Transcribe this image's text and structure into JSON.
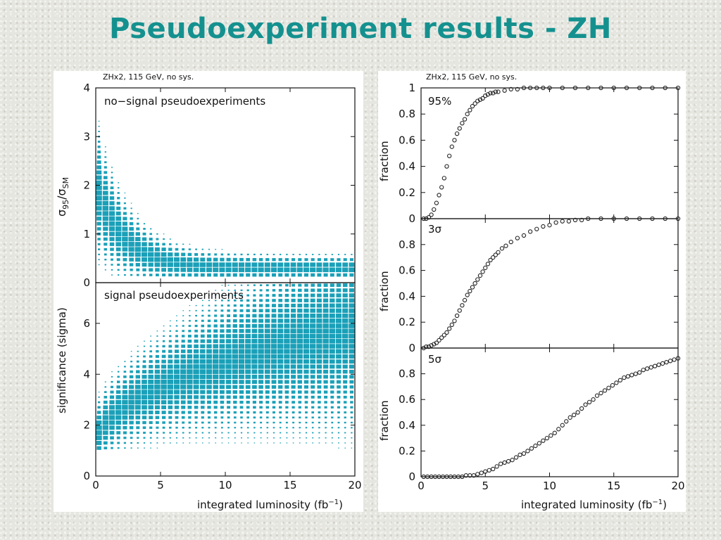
{
  "title": "Pseudoexperiment results - ZH",
  "colors": {
    "title": "#14918f",
    "scatter": "#1aa0b8",
    "points": "#222222"
  },
  "chart_data": [
    {
      "type": "heatmap",
      "panel": "left-top",
      "title": "ZHx2, 115 GeV, no sys.",
      "annotation": "no−signal pseudoexperiments",
      "xlabel": "integrated luminosity",
      "xlabel_unit": "(fb",
      "xlabel_sup": "−1",
      "xlabel_close": ")",
      "ylabel_main": "σ",
      "ylabel_sub1": "95",
      "ylabel_mid": "/σ",
      "ylabel_sub2": "SM",
      "xlim": [
        0,
        20
      ],
      "ylim": [
        0,
        4
      ],
      "xticks": [
        "0",
        "5",
        "10",
        "15",
        "20"
      ],
      "yticks": [
        "0",
        "1",
        "2",
        "3",
        "4"
      ],
      "description_model": {
        "mean_start": 2.0,
        "mean_end": 0.3,
        "color": "#1aa0b8"
      }
    },
    {
      "type": "heatmap",
      "panel": "left-bottom",
      "annotation": "signal pseudoexperiments",
      "ylabel": "significance  (sigma)",
      "xlim": [
        0,
        20
      ],
      "ylim": [
        0,
        7.6
      ],
      "yticks": [
        "0",
        "2",
        "4",
        "6"
      ],
      "description_model": {
        "mean_start": 1.2,
        "mean_end": 5.8,
        "color": "#1aa0b8"
      }
    },
    {
      "type": "scatter",
      "panel": "right-top",
      "title": "ZHx2, 115 GeV, no sys.",
      "annotation": "95%",
      "ylabel": "fraction",
      "xlim": [
        0,
        20
      ],
      "ylim": [
        0,
        1
      ],
      "yticks": [
        "0",
        "0.2",
        "0.4",
        "0.6",
        "0.8",
        "1"
      ],
      "x": [
        0.2,
        0.4,
        0.6,
        0.8,
        1.0,
        1.2,
        1.4,
        1.6,
        1.8,
        2.0,
        2.2,
        2.4,
        2.6,
        2.8,
        3.0,
        3.2,
        3.4,
        3.6,
        3.8,
        4.0,
        4.2,
        4.4,
        4.6,
        4.8,
        5.0,
        5.2,
        5.4,
        5.6,
        5.8,
        6.0,
        6.5,
        7.0,
        7.5,
        8.0,
        8.5,
        9.0,
        9.5,
        10,
        11,
        12,
        13,
        14,
        15,
        16,
        17,
        18,
        19,
        20
      ],
      "values": [
        0,
        0,
        0.01,
        0.03,
        0.07,
        0.12,
        0.18,
        0.24,
        0.31,
        0.4,
        0.48,
        0.55,
        0.6,
        0.65,
        0.69,
        0.73,
        0.76,
        0.8,
        0.83,
        0.86,
        0.88,
        0.9,
        0.91,
        0.92,
        0.94,
        0.95,
        0.96,
        0.96,
        0.97,
        0.97,
        0.98,
        0.99,
        0.99,
        1,
        1,
        1,
        1,
        1,
        1,
        1,
        1,
        1,
        1,
        1,
        1,
        1,
        1,
        1
      ]
    },
    {
      "type": "scatter",
      "panel": "right-middle",
      "annotation": "3σ",
      "ylabel": "fraction",
      "xlim": [
        0,
        20
      ],
      "ylim": [
        0,
        1
      ],
      "yticks": [
        "0",
        "0.2",
        "0.4",
        "0.6",
        "0.8"
      ],
      "x": [
        0.2,
        0.4,
        0.6,
        0.8,
        1.0,
        1.2,
        1.4,
        1.6,
        1.8,
        2.0,
        2.2,
        2.4,
        2.6,
        2.8,
        3.0,
        3.2,
        3.4,
        3.6,
        3.8,
        4.0,
        4.2,
        4.4,
        4.6,
        4.8,
        5.0,
        5.2,
        5.4,
        5.6,
        5.8,
        6.0,
        6.3,
        6.6,
        7.0,
        7.5,
        8.0,
        8.5,
        9.0,
        9.5,
        10,
        10.5,
        11,
        11.5,
        12,
        12.5,
        13,
        14,
        15,
        16,
        17,
        18,
        19,
        20
      ],
      "values": [
        0,
        0.01,
        0.01,
        0.02,
        0.03,
        0.04,
        0.06,
        0.08,
        0.1,
        0.12,
        0.15,
        0.18,
        0.21,
        0.25,
        0.29,
        0.33,
        0.37,
        0.41,
        0.44,
        0.47,
        0.5,
        0.53,
        0.56,
        0.59,
        0.62,
        0.65,
        0.68,
        0.7,
        0.72,
        0.74,
        0.77,
        0.79,
        0.82,
        0.85,
        0.87,
        0.9,
        0.92,
        0.94,
        0.95,
        0.97,
        0.98,
        0.98,
        0.99,
        0.99,
        1,
        1,
        1,
        1,
        1,
        1,
        1,
        1
      ]
    },
    {
      "type": "scatter",
      "panel": "right-bottom",
      "annotation": "5σ",
      "ylabel": "fraction",
      "xlabel": "integrated luminosity",
      "xlabel_unit": "(fb",
      "xlabel_sup": "−1",
      "xlabel_close": ")",
      "xlim": [
        0,
        20
      ],
      "ylim": [
        0,
        1
      ],
      "xticks": [
        "0",
        "5",
        "10",
        "15",
        "20"
      ],
      "yticks": [
        "0",
        "0.2",
        "0.4",
        "0.6",
        "0.8"
      ],
      "x": [
        0.2,
        0.5,
        0.8,
        1.1,
        1.4,
        1.7,
        2.0,
        2.3,
        2.6,
        2.9,
        3.2,
        3.5,
        3.8,
        4.1,
        4.4,
        4.7,
        5.0,
        5.3,
        5.6,
        5.9,
        6.2,
        6.5,
        6.8,
        7.1,
        7.4,
        7.7,
        8.0,
        8.3,
        8.6,
        8.9,
        9.2,
        9.5,
        9.8,
        10.1,
        10.4,
        10.7,
        11.0,
        11.3,
        11.6,
        11.9,
        12.2,
        12.5,
        12.8,
        13.1,
        13.4,
        13.7,
        14.0,
        14.3,
        14.6,
        14.9,
        15.2,
        15.5,
        15.8,
        16.1,
        16.4,
        16.7,
        17.0,
        17.3,
        17.6,
        17.9,
        18.2,
        18.5,
        18.8,
        19.1,
        19.4,
        19.7,
        20.0
      ],
      "values": [
        0,
        0,
        0,
        0,
        0,
        0,
        0,
        0,
        0,
        0,
        0,
        0.01,
        0.01,
        0.01,
        0.02,
        0.03,
        0.04,
        0.05,
        0.06,
        0.08,
        0.1,
        0.11,
        0.12,
        0.13,
        0.15,
        0.17,
        0.18,
        0.2,
        0.22,
        0.24,
        0.26,
        0.28,
        0.3,
        0.32,
        0.34,
        0.37,
        0.4,
        0.43,
        0.46,
        0.48,
        0.5,
        0.53,
        0.56,
        0.58,
        0.6,
        0.63,
        0.65,
        0.67,
        0.69,
        0.71,
        0.73,
        0.75,
        0.77,
        0.78,
        0.79,
        0.8,
        0.81,
        0.83,
        0.84,
        0.85,
        0.86,
        0.87,
        0.88,
        0.89,
        0.9,
        0.91,
        0.92
      ]
    }
  ]
}
